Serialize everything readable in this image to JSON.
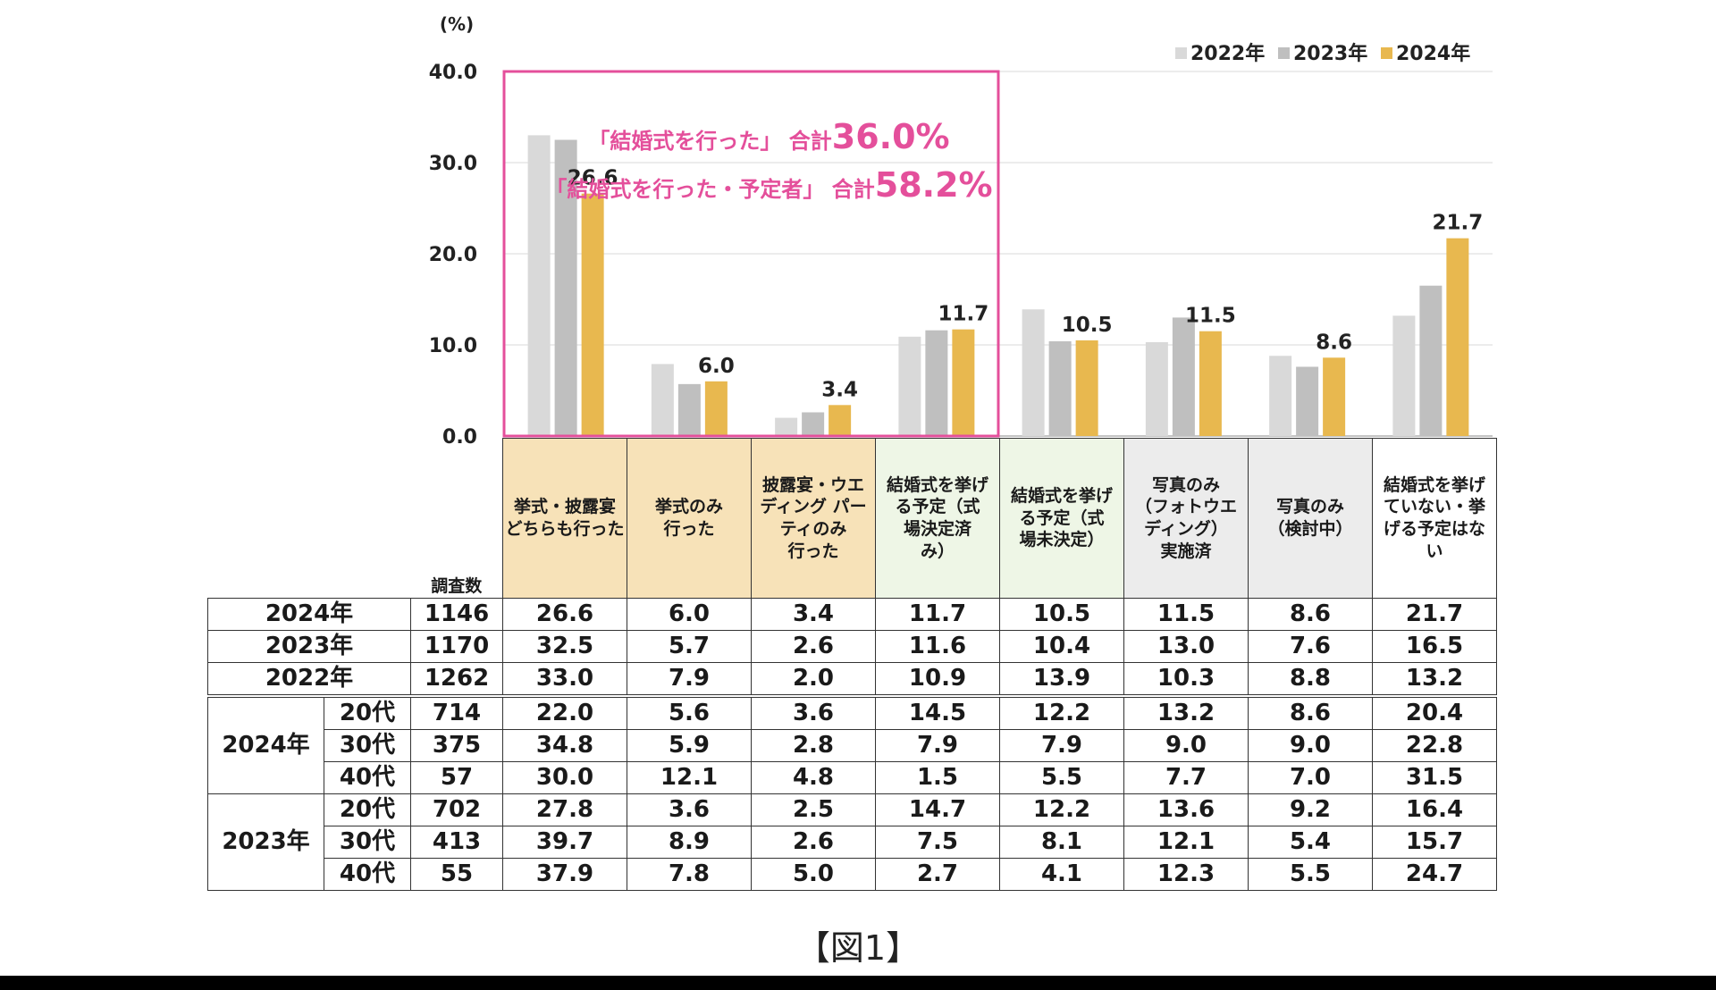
{
  "chart_data": {
    "type": "bar",
    "ylabel": "(%)",
    "ylim": [
      0,
      40
    ],
    "yticks": [
      "0.0",
      "10.0",
      "20.0",
      "30.0",
      "40.0"
    ],
    "categories": [
      "挙式・披露宴どちらも行った",
      "挙式のみ行った",
      "披露宴・ウエディング パーティのみ行った",
      "結婚式を挙げる予定（式場決定済み）",
      "結婚式を挙げる予定（式場未決定）",
      "写真のみ（フォトウエディング）実施済",
      "写真のみ（検討中）",
      "結婚式を挙げていない・挙げる予定はない"
    ],
    "series": [
      {
        "name": "2022年",
        "color": "#d9d9d9",
        "values": [
          33.0,
          7.9,
          2.0,
          10.9,
          13.9,
          10.3,
          8.8,
          13.2
        ]
      },
      {
        "name": "2023年",
        "color": "#bfbfbf",
        "values": [
          32.5,
          5.7,
          2.6,
          11.6,
          10.4,
          13.0,
          7.6,
          16.5
        ]
      },
      {
        "name": "2024年",
        "color": "#e8b84f",
        "values": [
          26.6,
          6.0,
          3.4,
          11.7,
          10.5,
          11.5,
          8.6,
          21.7
        ]
      }
    ],
    "data_labels": [
      "26.6",
      "6.0",
      "3.4",
      "11.7",
      "10.5",
      "11.5",
      "8.6",
      "21.7"
    ],
    "legend_position": "top-right",
    "grid": true,
    "annotations": [
      {
        "text": "「結婚式を行った」 合計",
        "value": "36.0%"
      },
      {
        "text": "「結婚式を行った・予定者」 合計",
        "value": "58.2%"
      }
    ],
    "highlight_color": "#e44f9b"
  },
  "table": {
    "count_header": "調査数",
    "header_lines": [
      [
        "挙式・披露宴",
        "どちらも行った"
      ],
      [
        "挙式のみ",
        "行った"
      ],
      [
        "披露宴・ウエ",
        "ディング パー",
        "ティのみ",
        "行った"
      ],
      [
        "結婚式を挙げ",
        "る予定（式",
        "場決定済",
        "み）"
      ],
      [
        "結婚式を挙げ",
        "る予定（式",
        "場未決定）"
      ],
      [
        "写真のみ",
        "（フォトウエ",
        "ディング）",
        "実施済"
      ],
      [
        "写真のみ",
        "（検討中）"
      ],
      [
        "結婚式を挙げ",
        "ていない・挙",
        "げる予定はな",
        "い"
      ]
    ],
    "rows": [
      {
        "label": "2024年",
        "n": "1146",
        "values": [
          "26.6",
          "6.0",
          "3.4",
          "11.7",
          "10.5",
          "11.5",
          "8.6",
          "21.7"
        ]
      },
      {
        "label": "2023年",
        "n": "1170",
        "values": [
          "32.5",
          "5.7",
          "2.6",
          "11.6",
          "10.4",
          "13.0",
          "7.6",
          "16.5"
        ]
      },
      {
        "label": "2022年",
        "n": "1262",
        "values": [
          "33.0",
          "7.9",
          "2.0",
          "10.9",
          "13.9",
          "10.3",
          "8.8",
          "13.2"
        ]
      }
    ],
    "groups": [
      {
        "year": "2024年",
        "rows": [
          {
            "age": "20代",
            "n": "714",
            "values": [
              "22.0",
              "5.6",
              "3.6",
              "14.5",
              "12.2",
              "13.2",
              "8.6",
              "20.4"
            ]
          },
          {
            "age": "30代",
            "n": "375",
            "values": [
              "34.8",
              "5.9",
              "2.8",
              "7.9",
              "7.9",
              "9.0",
              "9.0",
              "22.8"
            ]
          },
          {
            "age": "40代",
            "n": "57",
            "values": [
              "30.0",
              "12.1",
              "4.8",
              "1.5",
              "5.5",
              "7.7",
              "7.0",
              "31.5"
            ]
          }
        ]
      },
      {
        "year": "2023年",
        "rows": [
          {
            "age": "20代",
            "n": "702",
            "values": [
              "27.8",
              "3.6",
              "2.5",
              "14.7",
              "12.2",
              "13.6",
              "9.2",
              "16.4"
            ]
          },
          {
            "age": "30代",
            "n": "413",
            "values": [
              "39.7",
              "8.9",
              "2.6",
              "7.5",
              "8.1",
              "12.1",
              "5.4",
              "15.7"
            ]
          },
          {
            "age": "40代",
            "n": "55",
            "values": [
              "37.9",
              "7.8",
              "5.0",
              "2.7",
              "4.1",
              "12.3",
              "5.5",
              "24.7"
            ]
          }
        ]
      }
    ]
  },
  "caption": "【図1】"
}
